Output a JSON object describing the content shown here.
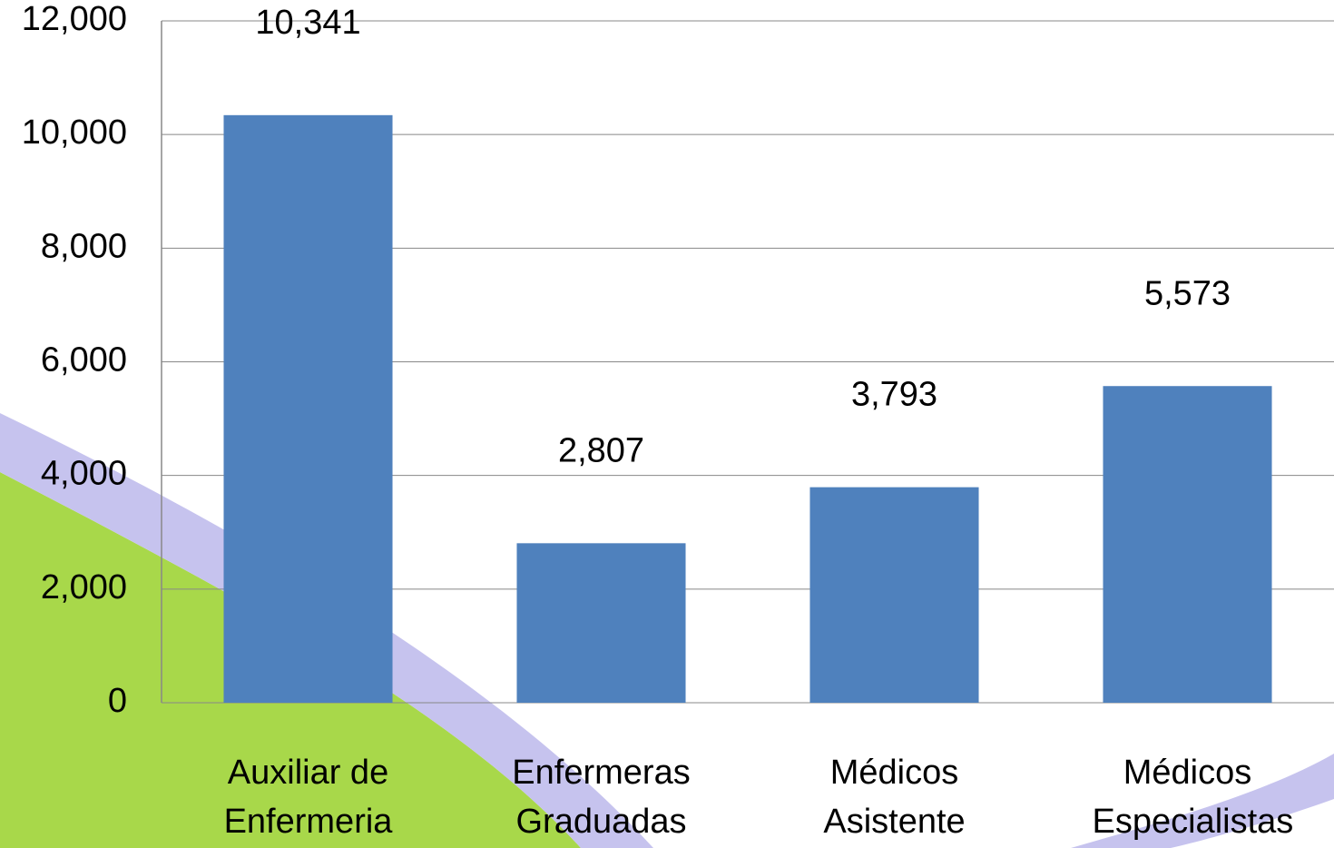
{
  "chart_data": {
    "type": "bar",
    "categories": [
      "Auxiliar de Enfermeria",
      "Enfermeras Graduadas",
      "Médicos Asistente",
      "Médicos Especialistas"
    ],
    "values": [
      10341,
      2807,
      3793,
      5573
    ],
    "value_labels": [
      "10,341",
      "2,807",
      "3,793",
      "5,573"
    ],
    "color": "#4f81bd",
    "ylim": [
      0,
      12000
    ],
    "yticks": [
      0,
      {
        "value": 2000,
        "label": "2,000"
      },
      {
        "value": 4000,
        "label": "4,000"
      },
      {
        "value": 6000,
        "label": "6,000"
      },
      {
        "value": 8000,
        "label": "8,000"
      },
      {
        "value": 10000,
        "label": "10,000"
      },
      {
        "value": 12000,
        "label": "12,000"
      }
    ],
    "grid": true
  }
}
